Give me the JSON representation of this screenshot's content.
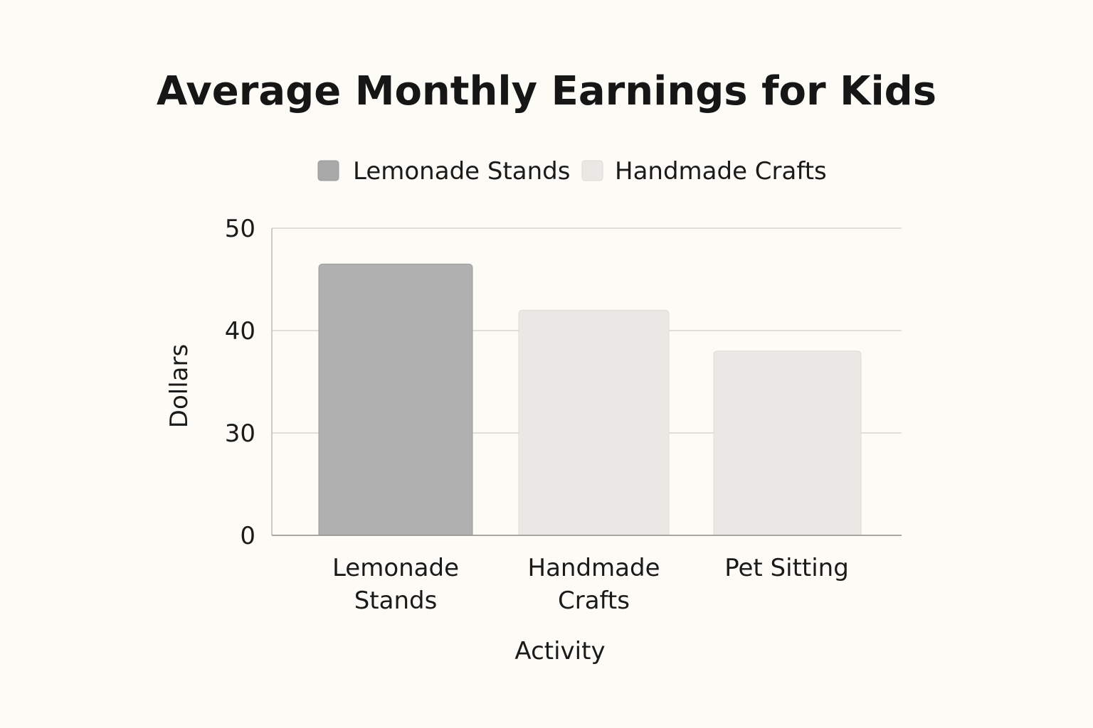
{
  "chart_data": {
    "type": "bar",
    "title": "Average Monthly Earnings for Kids",
    "xlabel": "Activity",
    "ylabel": "Dollars",
    "categories": [
      "Lemonade Stands",
      "Handmade Crafts",
      "Pet Sitting"
    ],
    "category_lines": [
      [
        "Lemonade",
        "Stands"
      ],
      [
        "Handmade",
        "Crafts"
      ],
      [
        "Pet Sitting"
      ]
    ],
    "values": [
      46.5,
      42,
      38
    ],
    "bar_colors": [
      "#b0b0b0",
      "#e9e8e4",
      "#e9e8e4"
    ],
    "yticks": [
      0,
      30,
      40,
      50
    ],
    "grid": true,
    "legend": {
      "placement": "top-center",
      "entries": [
        {
          "label": "Lemonade Stands",
          "color": "#a9a9a9"
        },
        {
          "label": "Handmade Crafts",
          "color": "#e9e8e4"
        }
      ]
    }
  }
}
